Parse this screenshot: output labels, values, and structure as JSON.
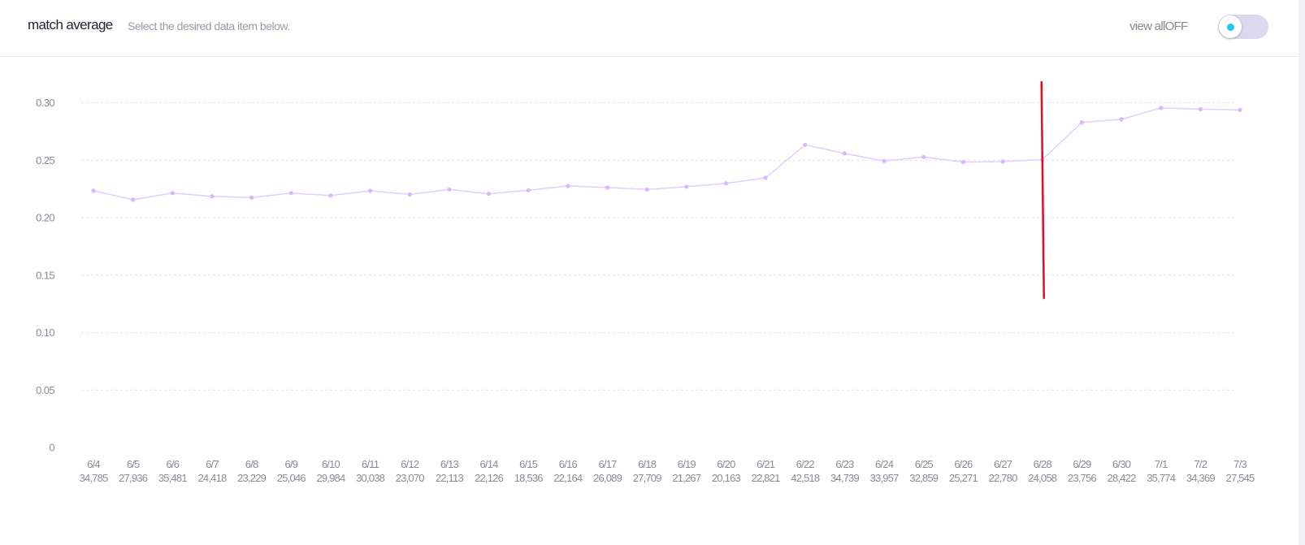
{
  "header": {
    "title": "match average",
    "subtitle": "Select the desired data item below.",
    "toggle_label": "view allOFF",
    "toggle_state": "off"
  },
  "colors": {
    "series_line": "#e3cdfb",
    "series_point": "#d8b8f8",
    "marker_line": "#e01020",
    "grid": "#e3e3e8",
    "toggle_track": "#dcd9ee",
    "toggle_dot": "#1ec8f0"
  },
  "chart_data": {
    "type": "line",
    "title": "",
    "xlabel": "",
    "ylabel": "",
    "ylim": [
      0,
      0.3
    ],
    "yticks": [
      0,
      0.05,
      0.1,
      0.15,
      0.2,
      0.25,
      0.3
    ],
    "ytick_labels": [
      "0",
      "0.05",
      "0.10",
      "0.15",
      "0.20",
      "0.25",
      "0.30"
    ],
    "grid": true,
    "categories": [
      "6/4",
      "6/5",
      "6/6",
      "6/7",
      "6/8",
      "6/9",
      "6/10",
      "6/11",
      "6/12",
      "6/13",
      "6/14",
      "6/15",
      "6/16",
      "6/17",
      "6/18",
      "6/19",
      "6/20",
      "6/21",
      "6/22",
      "6/23",
      "6/24",
      "6/25",
      "6/26",
      "6/27",
      "6/28",
      "6/29",
      "6/30",
      "7/1",
      "7/2",
      "7/3"
    ],
    "counts": [
      "34,785",
      "27,936",
      "35,481",
      "24,418",
      "23,229",
      "25,046",
      "29,984",
      "30,038",
      "23,070",
      "22,113",
      "22,126",
      "18,536",
      "22,164",
      "26,089",
      "27,709",
      "21,267",
      "20,163",
      "22,821",
      "42,518",
      "34,739",
      "33,957",
      "32,859",
      "25,271",
      "22,780",
      "24,058",
      "23,756",
      "28,422",
      "35,774",
      "34,369",
      "27,545"
    ],
    "series": [
      {
        "values": [
          0.2234,
          0.2157,
          0.2214,
          0.2185,
          0.2175,
          0.2214,
          0.2192,
          0.2234,
          0.2202,
          0.2245,
          0.2208,
          0.2238,
          0.2276,
          0.2262,
          0.2245,
          0.2269,
          0.2298,
          0.2347,
          0.2634,
          0.2559,
          0.2493,
          0.2528,
          0.2484,
          0.2488,
          0.2505,
          0.2829,
          0.2856,
          0.2955,
          0.2944,
          0.2937
        ]
      }
    ],
    "annotation": {
      "type": "vertical-marker",
      "at": "6/28",
      "y_from": 0.13,
      "y_to": 0.318
    }
  }
}
